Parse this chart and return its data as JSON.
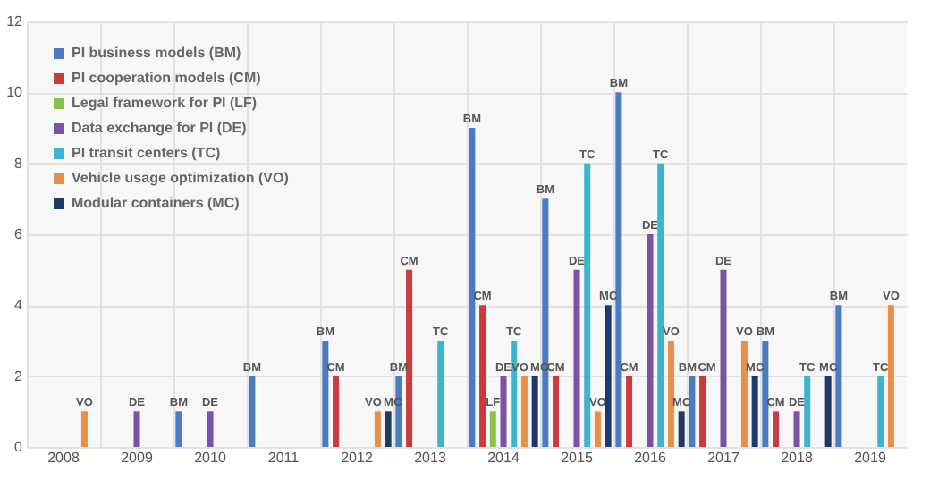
{
  "chart_data": {
    "type": "bar",
    "categories": [
      "2008",
      "2009",
      "2010",
      "2011",
      "2012",
      "2013",
      "2014",
      "2015",
      "2016",
      "2017",
      "2018",
      "2019"
    ],
    "series": [
      {
        "name": "PI business models (BM)",
        "color": "#4a7cc4",
        "values": [
          null,
          null,
          1,
          2,
          3,
          2,
          9,
          7,
          10,
          2,
          3,
          4
        ],
        "value_labels": [
          null,
          null,
          "BM",
          "BM",
          "BM",
          "BM",
          "BM",
          "BM",
          "BM",
          "BM",
          "BM",
          "BM"
        ]
      },
      {
        "name": "PI cooperation models (CM)",
        "color": "#cc3b3b",
        "values": [
          null,
          null,
          null,
          null,
          2,
          5,
          4,
          2,
          2,
          2,
          1,
          null
        ],
        "value_labels": [
          null,
          null,
          null,
          null,
          "CM",
          "CM",
          "CM",
          "CM",
          "CM",
          "CM",
          "CM",
          null
        ]
      },
      {
        "name": "Legal framework for PI (LF)",
        "color": "#8cc04a",
        "values": [
          null,
          null,
          null,
          null,
          null,
          null,
          1,
          null,
          null,
          null,
          null,
          null
        ],
        "value_labels": [
          null,
          null,
          null,
          null,
          null,
          null,
          "LF",
          null,
          null,
          null,
          null,
          null
        ]
      },
      {
        "name": "Data exchange for PI (DE)",
        "color": "#7b53a6",
        "values": [
          null,
          1,
          1,
          null,
          null,
          null,
          2,
          5,
          6,
          5,
          1,
          null
        ],
        "value_labels": [
          null,
          "DE",
          "DE",
          null,
          null,
          null,
          "DE",
          "DE",
          "DE",
          "DE",
          "DE",
          null
        ]
      },
      {
        "name": "PI transit centers (TC)",
        "color": "#3fb4cf",
        "values": [
          null,
          null,
          null,
          null,
          null,
          3,
          3,
          8,
          8,
          null,
          2,
          2
        ],
        "value_labels": [
          null,
          null,
          null,
          null,
          null,
          "TC",
          "TC",
          "TC",
          "TC",
          null,
          "TC",
          "TC"
        ]
      },
      {
        "name": "Vehicle usage optimization (VO)",
        "color": "#e8904a",
        "values": [
          1,
          null,
          null,
          null,
          1,
          null,
          2,
          1,
          3,
          3,
          null,
          4
        ],
        "value_labels": [
          "VO",
          null,
          null,
          null,
          "VO",
          null,
          "VO",
          "VO",
          "VO",
          "VO",
          null,
          "VO"
        ]
      },
      {
        "name": "Modular containers (MC)",
        "color": "#1f3a68",
        "values": [
          null,
          null,
          null,
          null,
          1,
          null,
          2,
          4,
          1,
          2,
          2,
          null
        ],
        "value_labels": [
          null,
          null,
          null,
          null,
          "MC",
          null,
          "MC",
          "MC",
          "MC",
          "MC",
          "MC",
          null
        ]
      }
    ],
    "ylim": [
      0,
      12
    ],
    "yticks": [
      0,
      2,
      4,
      6,
      8,
      10,
      12
    ],
    "grid": true,
    "legend": "top left"
  }
}
